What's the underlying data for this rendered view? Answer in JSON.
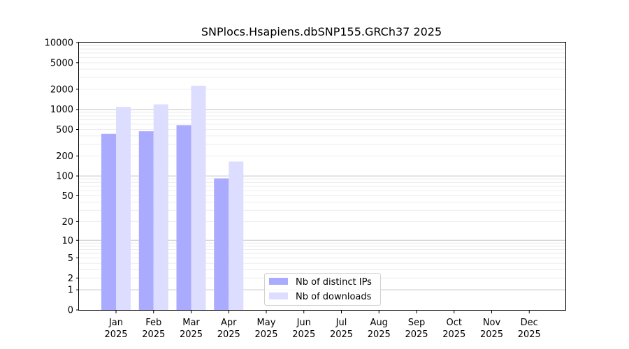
{
  "chart_data": {
    "type": "bar",
    "title": "SNPlocs.Hsapiens.dbSNP155.GRCh37 2025",
    "xlabel": "",
    "ylabel": "",
    "y_scale": "log(1+y)",
    "ylim": [
      0,
      10000
    ],
    "y_ticks": [
      "0",
      "1",
      "2",
      "5",
      "10",
      "20",
      "50",
      "100",
      "200",
      "500",
      "1000",
      "2000",
      "5000",
      "10000"
    ],
    "categories": [
      [
        "Jan",
        "2025"
      ],
      [
        "Feb",
        "2025"
      ],
      [
        "Mar",
        "2025"
      ],
      [
        "Apr",
        "2025"
      ],
      [
        "May",
        "2025"
      ],
      [
        "Jun",
        "2025"
      ],
      [
        "Jul",
        "2025"
      ],
      [
        "Aug",
        "2025"
      ],
      [
        "Sep",
        "2025"
      ],
      [
        "Oct",
        "2025"
      ],
      [
        "Nov",
        "2025"
      ],
      [
        "Dec",
        "2025"
      ]
    ],
    "series": [
      {
        "name": "Nb of distinct IPs",
        "color": "#aaaaff",
        "values": [
          430,
          470,
          580,
          92,
          null,
          null,
          null,
          null,
          null,
          null,
          null,
          null
        ]
      },
      {
        "name": "Nb of downloads",
        "color": "#ddddff",
        "values": [
          1090,
          1190,
          2260,
          165,
          null,
          null,
          null,
          null,
          null,
          null,
          null,
          null
        ]
      }
    ],
    "grid": true,
    "legend_position": "bottom-center"
  }
}
